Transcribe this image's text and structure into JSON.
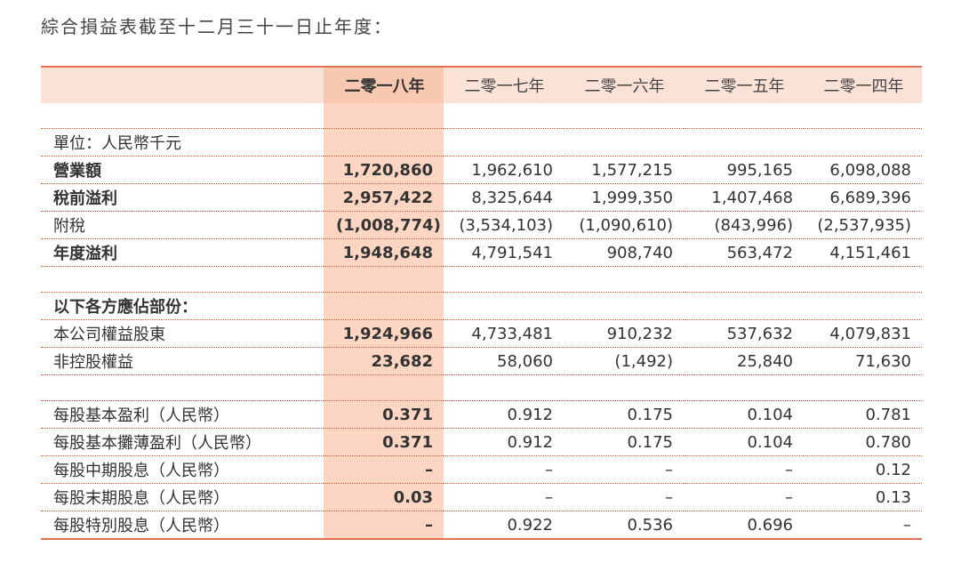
{
  "title": "綜合損益表截至十二月三十一日止年度：",
  "table": {
    "headers": [
      "",
      "二零一八年",
      "二零一七年",
      "二零一六年",
      "二零一五年",
      "二零一四年"
    ],
    "unit_label": "單位：人民幣千元",
    "rows": [
      {
        "label": "營業額",
        "values": [
          "1,720,860",
          "1,962,610",
          "1,577,215",
          "995,165",
          "6,098,088"
        ]
      },
      {
        "label": "稅前溢利",
        "values": [
          "2,957,422",
          "8,325,644",
          "1,999,350",
          "1,407,468",
          "6,689,396"
        ]
      },
      {
        "label": "附稅",
        "values": [
          "(1,008,774)",
          "(3,534,103)",
          "(1,090,610)",
          "(843,996)",
          "(2,537,935)"
        ]
      },
      {
        "label": "年度溢利",
        "values": [
          "1,948,648",
          "4,791,541",
          "908,740",
          "563,472",
          "4,151,461"
        ]
      },
      {
        "label": "以下各方應佔部份：",
        "values": [
          "",
          "",
          "",
          "",
          ""
        ]
      },
      {
        "label": "本公司權益股東",
        "values": [
          "1,924,966",
          "4,733,481",
          "910,232",
          "537,632",
          "4,079,831"
        ]
      },
      {
        "label": "非控股權益",
        "values": [
          "23,682",
          "58,060",
          "(1,492)",
          "25,840",
          "71,630"
        ]
      },
      {
        "label": "每股基本盈利（人民幣）",
        "values": [
          "0.371",
          "0.912",
          "0.175",
          "0.104",
          "0.781"
        ]
      },
      {
        "label": "每股基本攤薄盈利（人民幣）",
        "values": [
          "0.371",
          "0.912",
          "0.175",
          "0.104",
          "0.780"
        ]
      },
      {
        "label": "每股中期股息（人民幣）",
        "values": [
          "–",
          "–",
          "–",
          "–",
          "0.12"
        ]
      },
      {
        "label": "每股末期股息（人民幣）",
        "values": [
          "0.03",
          "–",
          "–",
          "–",
          "0.13"
        ]
      },
      {
        "label": "每股特別股息（人民幣）",
        "values": [
          "–",
          "0.922",
          "0.536",
          "0.696",
          "–"
        ]
      }
    ]
  }
}
